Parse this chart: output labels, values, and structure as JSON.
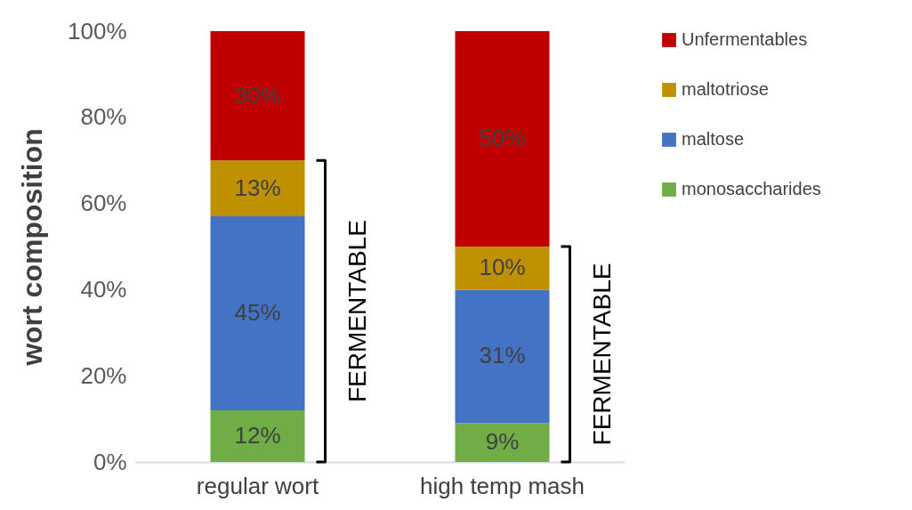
{
  "chart_data": {
    "type": "bar",
    "stacked": true,
    "ylabel": "wort composition",
    "categories": [
      "regular wort",
      "high temp mash"
    ],
    "series": [
      {
        "name": "monosaccharides",
        "color": "#70ad47",
        "values": [
          12,
          9
        ],
        "value_labels": [
          "12%",
          "9%"
        ]
      },
      {
        "name": "maltose",
        "color": "#4472c4",
        "values": [
          45,
          31
        ],
        "value_labels": [
          "45%",
          "31%"
        ]
      },
      {
        "name": "maltotriose",
        "color": "#bf9000",
        "values": [
          13,
          10
        ],
        "value_labels": [
          "13%",
          "10%"
        ]
      },
      {
        "name": "Unfermentables",
        "color": "#c00000",
        "values": [
          30,
          50
        ],
        "value_labels": [
          "30%",
          "50%"
        ]
      }
    ],
    "ylim": [
      0,
      100
    ],
    "yticks": [
      {
        "value": 0,
        "label": "0%"
      },
      {
        "value": 20,
        "label": "20%"
      },
      {
        "value": 40,
        "label": "40%"
      },
      {
        "value": 60,
        "label": "60%"
      },
      {
        "value": 80,
        "label": "80%"
      },
      {
        "value": 100,
        "label": "100%"
      }
    ],
    "grid": false,
    "legend": "right",
    "annotations": [
      "FERMENTABLE",
      "FERMENTABLE"
    ]
  }
}
